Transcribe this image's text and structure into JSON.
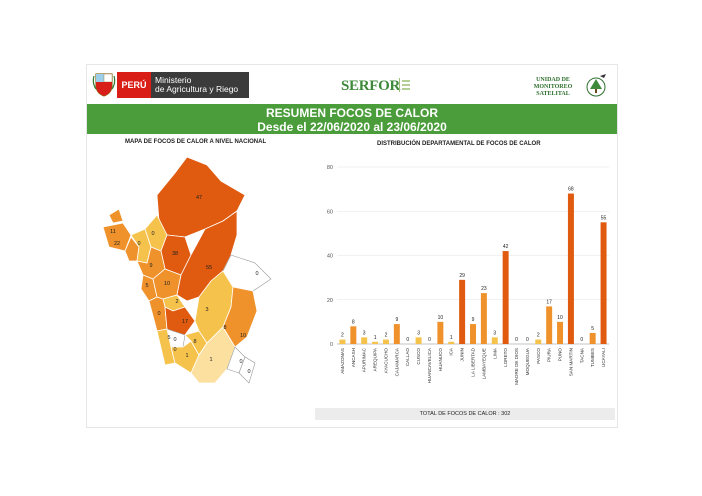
{
  "header": {
    "peru_label": "PERÚ",
    "ministry_line1": "Ministerio",
    "ministry_line2": "de Agricultura y Riego",
    "serfor_label": "SERFOR",
    "unidad_line1": "UNIDAD DE",
    "unidad_line2": "MONITOREO",
    "unidad_line3": "SATELITAL"
  },
  "banner": {
    "title": "RESUMEN FOCOS DE CALOR",
    "subtitle": "Desde el 22/06/2020 al 23/06/2020"
  },
  "map": {
    "title": "MAPA DE FOCOS DE CALOR A NIVEL NACIONAL",
    "labels": [
      "47",
      "11",
      "22",
      "0",
      "0",
      "38",
      "9",
      "5",
      "10",
      "2",
      "0",
      "55",
      "3",
      "5",
      "0",
      "17",
      "1",
      "8",
      "10",
      "8",
      "0",
      "1",
      "0",
      "0",
      "0"
    ]
  },
  "chart_data": {
    "type": "bar",
    "title": "DISTRIBUCIÓN DEPARTAMENTAL DE FOCOS DE CALOR",
    "categories": [
      "AMAZONAS",
      "ANCASH",
      "APURIMAC",
      "AREQUIPA",
      "AYACUCHO",
      "CAJAMARCA",
      "CALLAO",
      "CUSCO",
      "HUANCAVELICA",
      "HUANUCO",
      "ICA",
      "JUNIN",
      "LA LIBERTAD",
      "LAMBAYEQUE",
      "LIMA",
      "LORETO",
      "MADRE DE DIOS",
      "MOQUEGUA",
      "PASCO",
      "PIURA",
      "PUNO",
      "SAN MARTIN",
      "TACNA",
      "TUMBES",
      "UCAYALI"
    ],
    "values": [
      2,
      8,
      3,
      1,
      2,
      9,
      0,
      3,
      0,
      10,
      1,
      29,
      9,
      23,
      3,
      42,
      0,
      0,
      2,
      17,
      10,
      68,
      0,
      5,
      55
    ],
    "ylim": [
      0,
      80
    ],
    "yticks": [
      0,
      20,
      40,
      60,
      80
    ],
    "colors": {
      "low": "#f5c24c",
      "mid": "#f0922c",
      "high": "#e05a0f"
    },
    "total_label": "TOTAL DE FOCOS DE CALOR : 302"
  }
}
